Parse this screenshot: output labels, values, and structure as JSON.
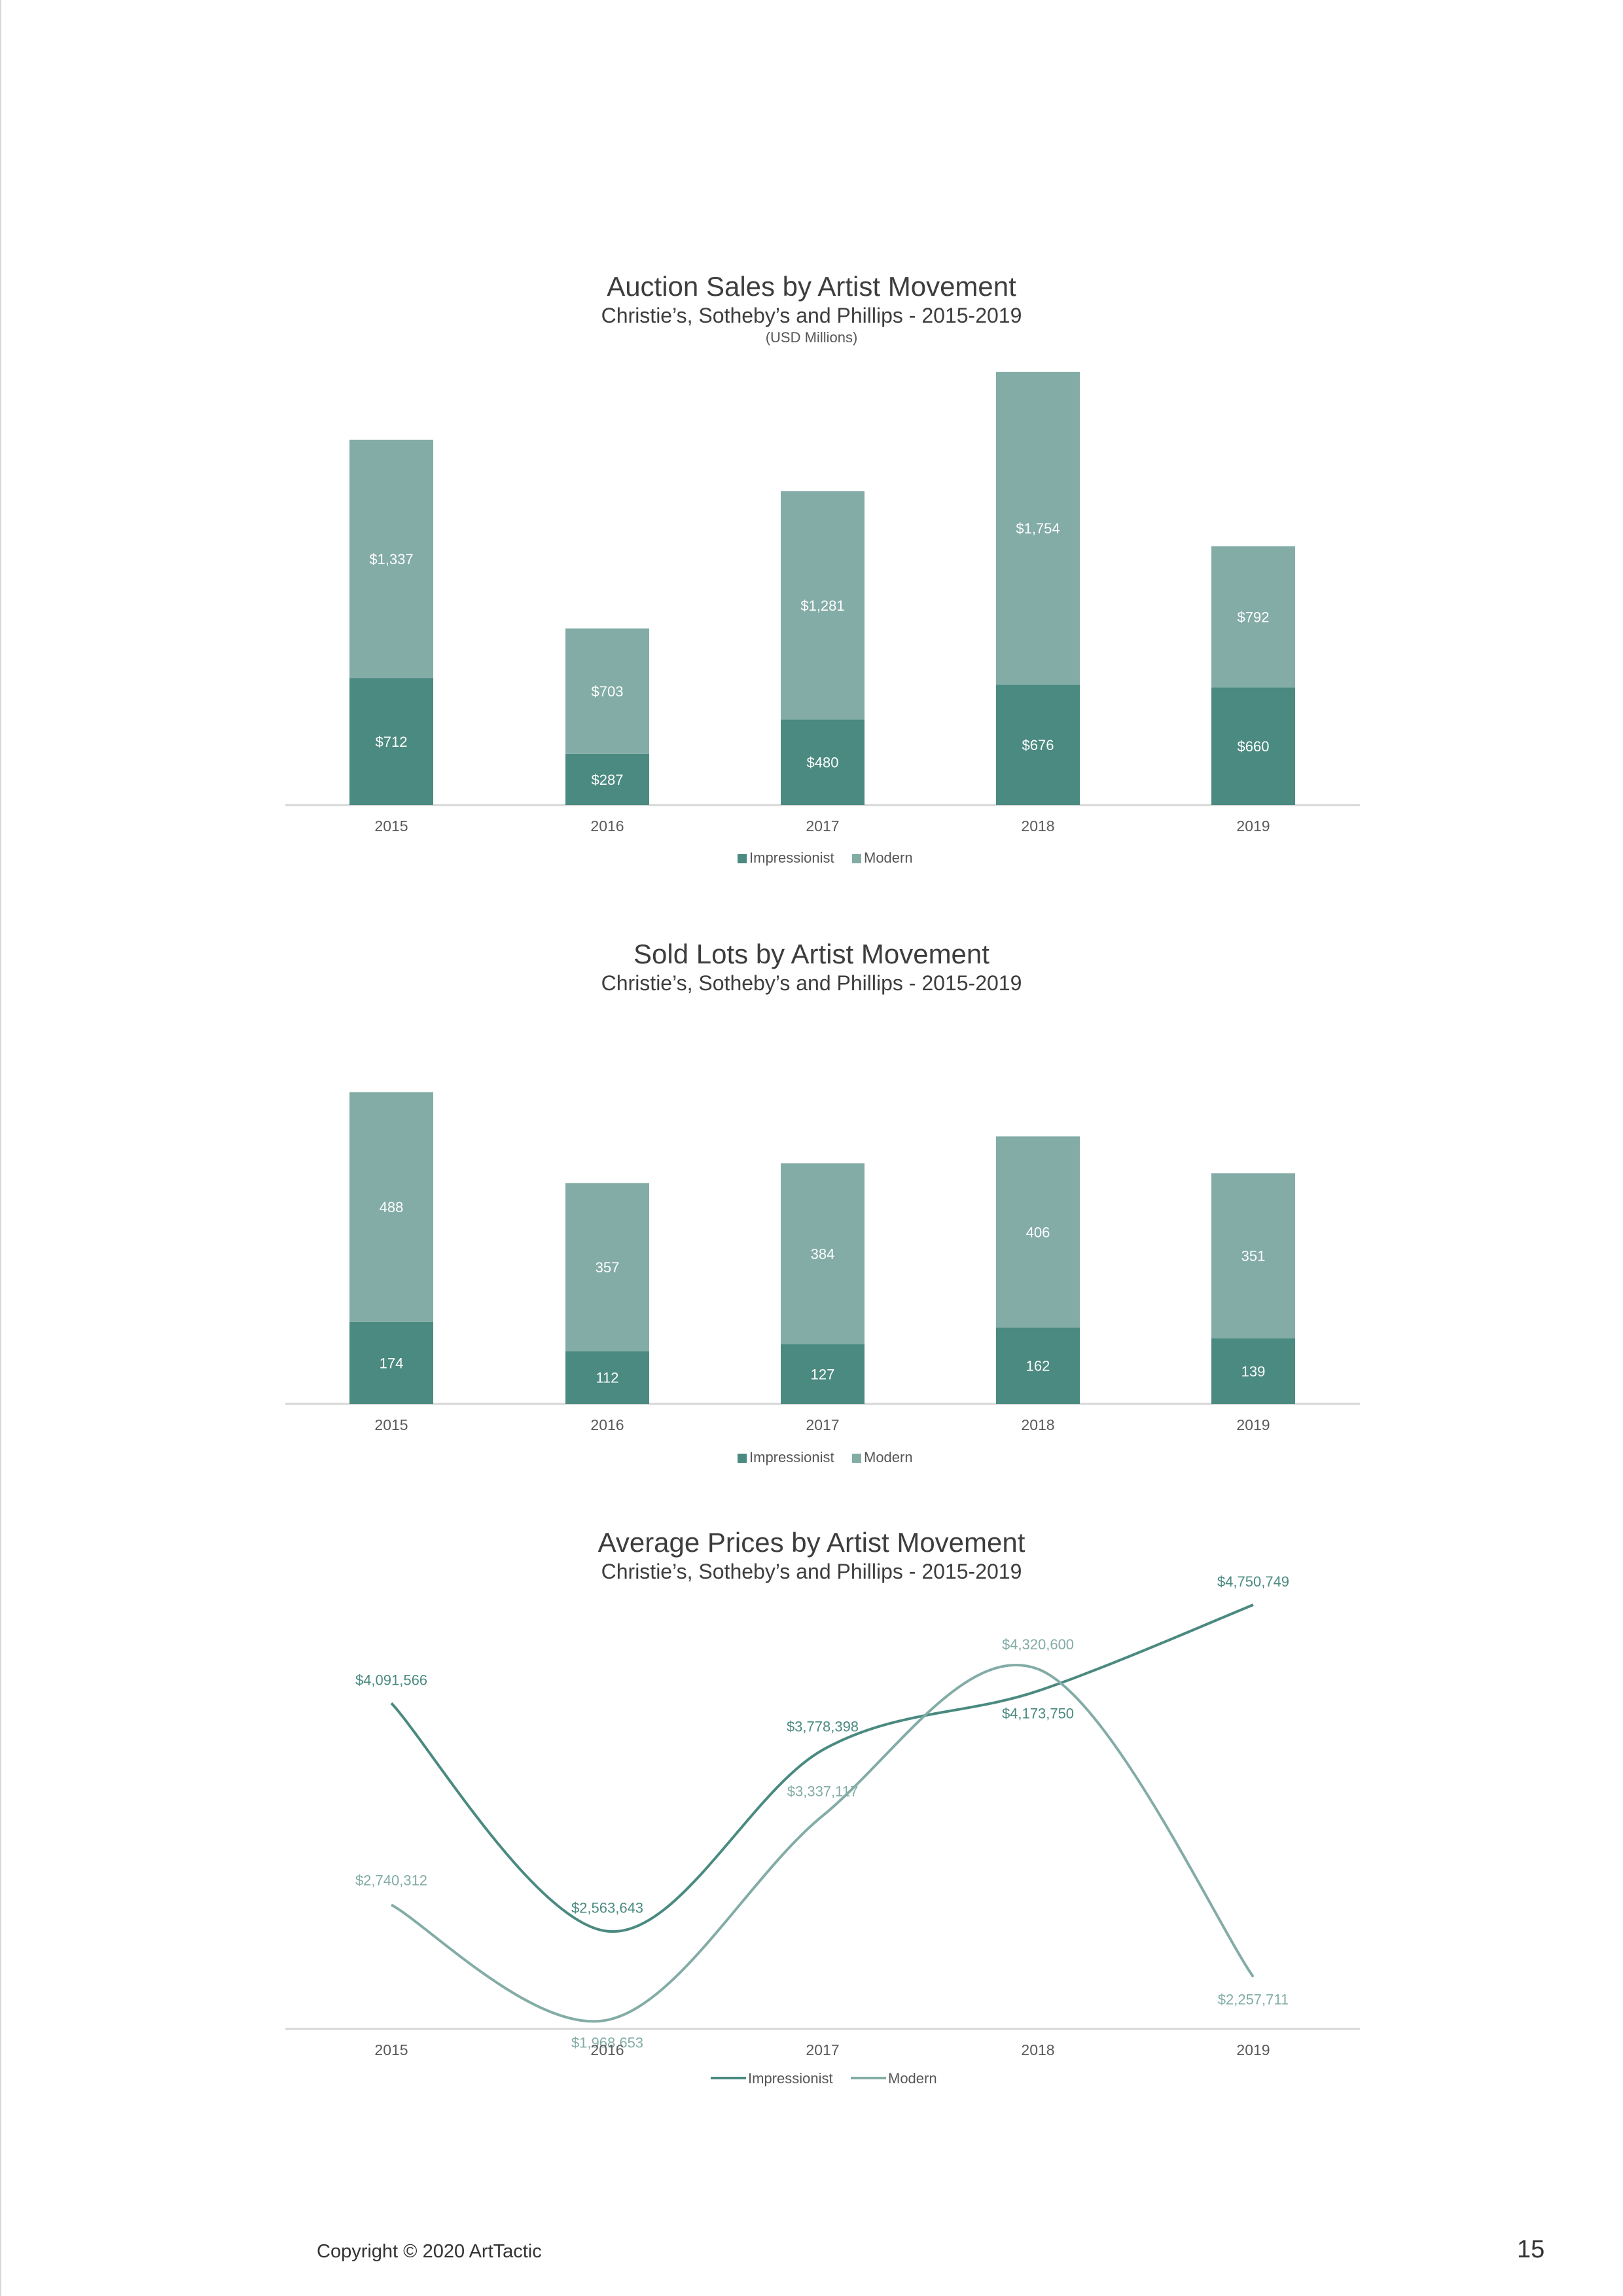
{
  "colors": {
    "impressionist": "#4a8a80",
    "modern": "#83aca6",
    "axis": "#d6d6d6",
    "tick_text": "#595959",
    "bar_label": "#ffffff"
  },
  "chart_data": [
    {
      "type": "bar",
      "stacked": true,
      "title": "Auction Sales by Artist Movement",
      "subtitle": "Christie’s, Sotheby’s and Phillips - 2015-2019",
      "unit_note": "(USD Millions)",
      "categories": [
        "2015",
        "2016",
        "2017",
        "2018",
        "2019"
      ],
      "series": [
        {
          "name": "Impressionist",
          "values": [
            712,
            287,
            480,
            676,
            660
          ],
          "labels": [
            "$712",
            "$287",
            "$480",
            "$676",
            "$660"
          ]
        },
        {
          "name": "Modern",
          "values": [
            1337,
            703,
            1281,
            1754,
            792
          ],
          "labels": [
            "$1,337",
            "$703",
            "$1,281",
            "$1,754",
            "$792"
          ]
        }
      ],
      "legend": "bottom"
    },
    {
      "type": "bar",
      "stacked": true,
      "title": "Sold Lots by Artist Movement",
      "subtitle": "Christie’s, Sotheby’s and Phillips - 2015-2019",
      "categories": [
        "2015",
        "2016",
        "2017",
        "2018",
        "2019"
      ],
      "series": [
        {
          "name": "Impressionist",
          "values": [
            174,
            112,
            127,
            162,
            139
          ],
          "labels": [
            "174",
            "112",
            "127",
            "162",
            "139"
          ]
        },
        {
          "name": "Modern",
          "values": [
            488,
            357,
            384,
            406,
            351
          ],
          "labels": [
            "488",
            "357",
            "384",
            "406",
            "351"
          ]
        }
      ],
      "legend": "bottom"
    },
    {
      "type": "line",
      "smooth": true,
      "title": "Average Prices by Artist Movement",
      "subtitle": "Christie’s, Sotheby’s and Phillips - 2015-2019",
      "categories": [
        "2015",
        "2016",
        "2017",
        "2018",
        "2019"
      ],
      "series": [
        {
          "name": "Impressionist",
          "values": [
            4091566,
            2563643,
            3778398,
            4173750,
            4750749
          ],
          "labels": [
            "$4,091,566",
            "$2,563,643",
            "$3,778,398",
            "$4,173,750",
            "$4,750,749"
          ]
        },
        {
          "name": "Modern",
          "values": [
            2740312,
            1968653,
            3337117,
            4320600,
            2257711
          ],
          "labels": [
            "$2,740,312",
            "$1,968,653",
            "$3,337,117",
            "$4,320,600",
            "$2,257,711"
          ]
        }
      ],
      "legend": "bottom"
    }
  ],
  "footer": {
    "copyright": "Copyright © 2020 ArtTactic",
    "page_number": "15"
  }
}
